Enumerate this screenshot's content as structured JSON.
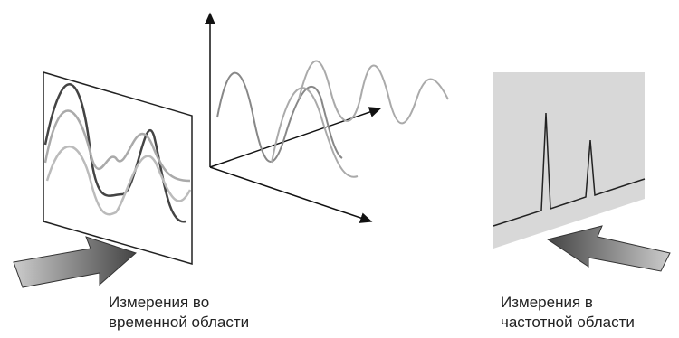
{
  "labels": {
    "time_domain": [
      "Измерения во",
      "временной области"
    ],
    "frequency_domain": [
      "Измерения в",
      "частотной области"
    ]
  }
}
